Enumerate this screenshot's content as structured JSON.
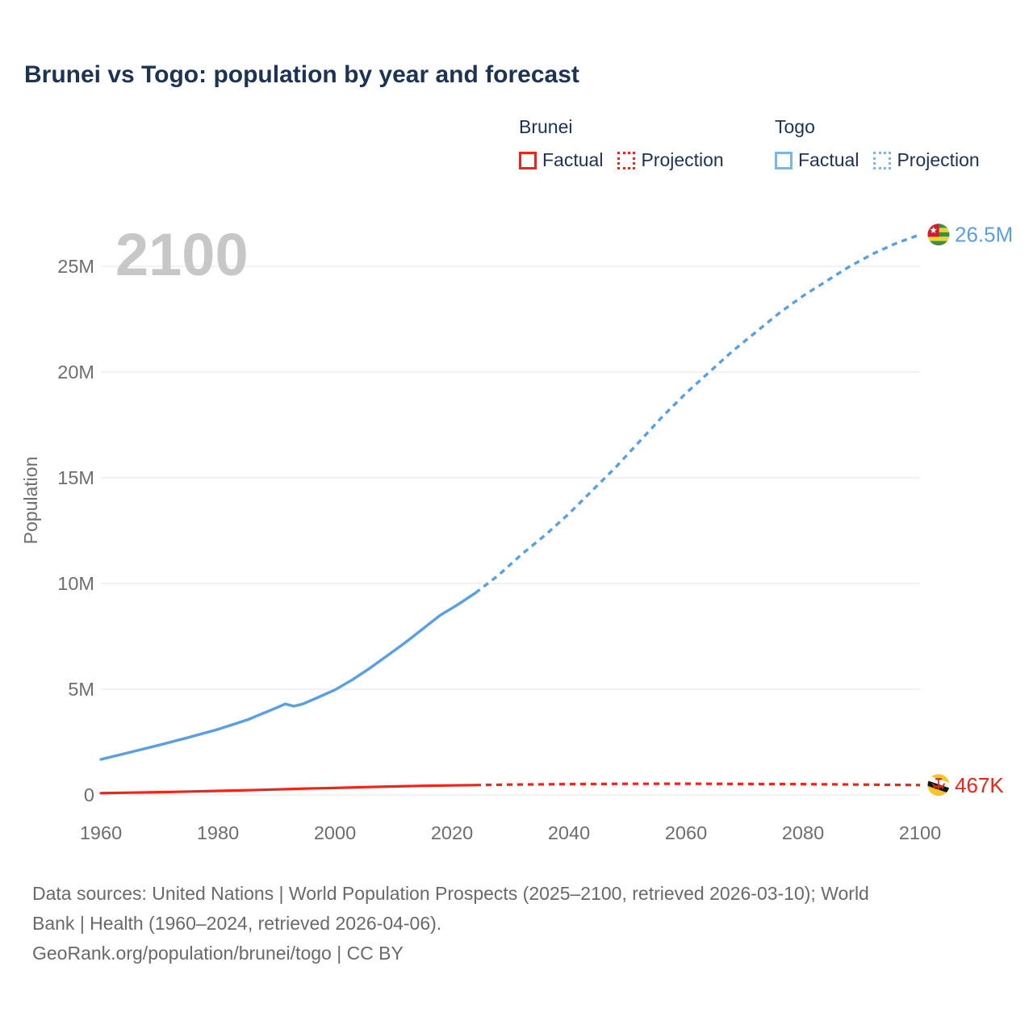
{
  "header": {
    "title": "Brunei vs Togo: population by year and forecast"
  },
  "palette": {
    "brunei_red": "#f02418",
    "togo_blue": "#5b9fe3",
    "legend_brunei_swatch": "#f02418",
    "legend_togo_swatch": "#7cb5ea",
    "navy_text": "#1d3353",
    "axis_text": "#6e6e6e",
    "gridline": "#ebebeb",
    "watermark_gray": "#c7c7c7",
    "footer_gray": "#696969"
  },
  "legend": {
    "groups": [
      {
        "name": "Brunei",
        "items": [
          {
            "label": "Factual",
            "style": "solid"
          },
          {
            "label": "Projection",
            "style": "dotted"
          }
        ]
      },
      {
        "name": "Togo",
        "items": [
          {
            "label": "Factual",
            "style": "solid"
          },
          {
            "label": "Projection",
            "style": "dotted"
          }
        ]
      }
    ]
  },
  "chart_data": {
    "type": "line",
    "title": "Brunei vs Togo: population by year and forecast",
    "xlabel": "",
    "ylabel": "Population",
    "watermark": "2100",
    "xlim": [
      1960,
      2100
    ],
    "ylim_millions": [
      0,
      26.5
    ],
    "grid": "horizontal",
    "x_ticks": [
      1960,
      1980,
      2000,
      2020,
      2040,
      2060,
      2080,
      2100
    ],
    "y_ticks": [
      {
        "value": 0,
        "label": "0"
      },
      {
        "value": 5,
        "label": "5M"
      },
      {
        "value": 10,
        "label": "10M"
      },
      {
        "value": 15,
        "label": "15M"
      },
      {
        "value": 20,
        "label": "20M"
      },
      {
        "value": 25,
        "label": "25M"
      }
    ],
    "series": [
      {
        "name": "Togo Factual",
        "country": "Togo",
        "kind": "factual",
        "dash": "solid",
        "color": "#5b9fe3",
        "width": 3.4,
        "points_year_millions": [
          [
            1960,
            1.68
          ],
          [
            1965,
            2.02
          ],
          [
            1970,
            2.36
          ],
          [
            1975,
            2.72
          ],
          [
            1980,
            3.1
          ],
          [
            1985,
            3.55
          ],
          [
            1990,
            4.12
          ],
          [
            1991.5,
            4.3
          ],
          [
            1993,
            4.2
          ],
          [
            1994.5,
            4.3
          ],
          [
            1997,
            4.6
          ],
          [
            2000,
            4.97
          ],
          [
            2003,
            5.45
          ],
          [
            2006,
            6.0
          ],
          [
            2009,
            6.6
          ],
          [
            2012,
            7.2
          ],
          [
            2015,
            7.85
          ],
          [
            2018,
            8.5
          ],
          [
            2021,
            9.0
          ],
          [
            2024,
            9.55
          ]
        ]
      },
      {
        "name": "Togo Projection",
        "country": "Togo",
        "kind": "projection",
        "dash": "dotted",
        "color": "#5b9fe3",
        "width": 3.4,
        "points_year_millions": [
          [
            2024,
            9.55
          ],
          [
            2028,
            10.4
          ],
          [
            2032,
            11.4
          ],
          [
            2036,
            12.3
          ],
          [
            2040,
            13.3
          ],
          [
            2044,
            14.4
          ],
          [
            2048,
            15.5
          ],
          [
            2052,
            16.7
          ],
          [
            2056,
            17.9
          ],
          [
            2060,
            19.0
          ],
          [
            2064,
            20.0
          ],
          [
            2068,
            21.0
          ],
          [
            2072,
            21.9
          ],
          [
            2076,
            22.8
          ],
          [
            2080,
            23.6
          ],
          [
            2084,
            24.3
          ],
          [
            2088,
            25.0
          ],
          [
            2092,
            25.6
          ],
          [
            2096,
            26.1
          ],
          [
            2100,
            26.5
          ]
        ]
      },
      {
        "name": "Brunei Factual",
        "country": "Brunei",
        "kind": "factual",
        "dash": "solid",
        "color": "#f02418",
        "width": 3.2,
        "points_year_millions": [
          [
            1960,
            0.085
          ],
          [
            1965,
            0.105
          ],
          [
            1970,
            0.13
          ],
          [
            1975,
            0.16
          ],
          [
            1980,
            0.19
          ],
          [
            1985,
            0.22
          ],
          [
            1990,
            0.26
          ],
          [
            1995,
            0.3
          ],
          [
            2000,
            0.33
          ],
          [
            2005,
            0.37
          ],
          [
            2010,
            0.4
          ],
          [
            2015,
            0.43
          ],
          [
            2020,
            0.45
          ],
          [
            2024,
            0.465
          ]
        ]
      },
      {
        "name": "Brunei Projection",
        "country": "Brunei",
        "kind": "projection",
        "dash": "dotted",
        "color": "#f02418",
        "width": 3.2,
        "points_year_millions": [
          [
            2024,
            0.465
          ],
          [
            2030,
            0.49
          ],
          [
            2040,
            0.51
          ],
          [
            2050,
            0.525
          ],
          [
            2060,
            0.53
          ],
          [
            2070,
            0.52
          ],
          [
            2080,
            0.51
          ],
          [
            2090,
            0.49
          ],
          [
            2100,
            0.467
          ]
        ]
      }
    ],
    "end_markers": [
      {
        "country": "Togo",
        "label": "26.5M",
        "year": 2100,
        "value_millions": 26.5,
        "color": "#5b9fe3",
        "flag_icon": "togo-flag-icon"
      },
      {
        "country": "Brunei",
        "label": "467K",
        "year": 2100,
        "value_millions": 0.467,
        "color": "#f02418",
        "flag_icon": "brunei-flag-icon"
      }
    ]
  },
  "footer": {
    "line1": "Data sources: United Nations | World Population Prospects (2025–2100, retrieved 2026-03-10); World",
    "line2": "Bank | Health (1960–2024, retrieved 2026-04-06).",
    "line3": "GeoRank.org/population/brunei/togo | CC BY"
  }
}
